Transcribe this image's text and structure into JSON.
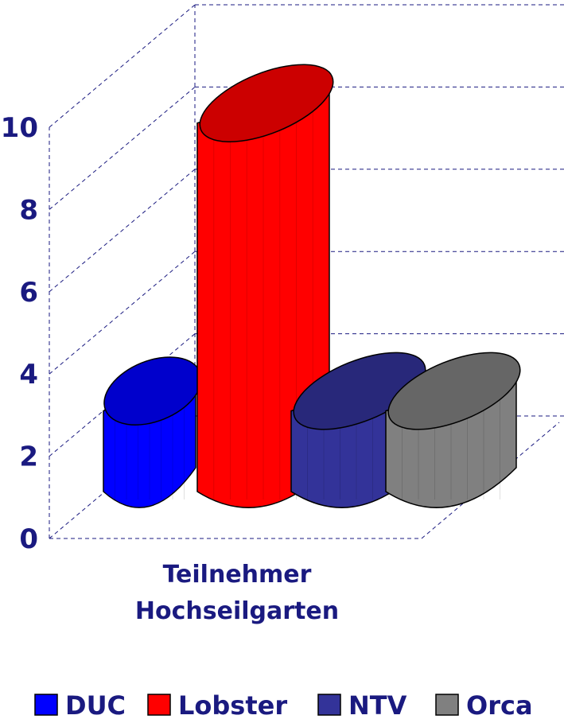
{
  "chart_data": {
    "type": "bar3d",
    "categories": [
      "Teilnehmer Hochseilgarten"
    ],
    "series": [
      {
        "name": "DUC",
        "color": "#0000ff",
        "values": [
          2
        ]
      },
      {
        "name": "Lobster",
        "color": "#ff0000",
        "values": [
          9
        ]
      },
      {
        "name": "NTV",
        "color": "#333399",
        "values": [
          2
        ]
      },
      {
        "name": "Orca",
        "color": "#808080",
        "values": [
          2
        ]
      }
    ],
    "ylim": [
      0,
      10
    ],
    "yticks": [
      0,
      2,
      4,
      6,
      8,
      10
    ],
    "grid": true,
    "legend": "bottom"
  }
}
